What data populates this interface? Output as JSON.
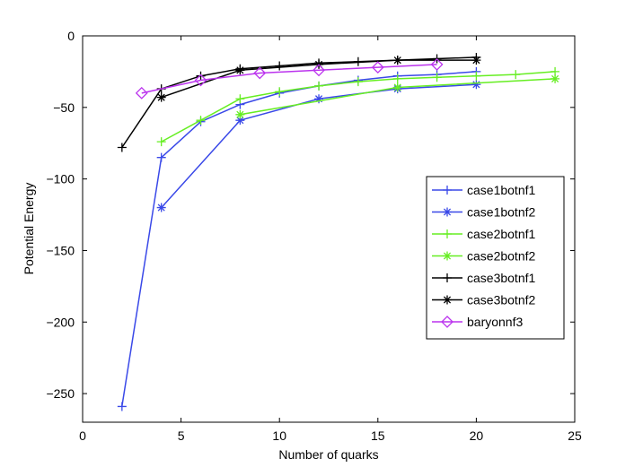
{
  "chart_data": {
    "type": "line",
    "title": "",
    "xlabel": "Number of quarks",
    "ylabel": "Potential Energy",
    "xlim": [
      0,
      25
    ],
    "ylim": [
      -270,
      0
    ],
    "xticks": [
      0,
      5,
      10,
      15,
      20,
      25
    ],
    "yticks": [
      0,
      -50,
      -100,
      -150,
      -200,
      -250
    ],
    "xtick_labels": [
      "0",
      "5",
      "10",
      "15",
      "20",
      "25"
    ],
    "ytick_labels": [
      "0",
      "−50",
      "−100",
      "−150",
      "−200",
      "−250"
    ],
    "grid": false,
    "legend_position": "right",
    "series": [
      {
        "name": "case1botnf1",
        "color": "#3a49e8",
        "marker": "plus",
        "x": [
          2,
          4,
          6,
          8,
          10,
          12,
          14,
          16,
          18,
          20
        ],
        "y": [
          -259,
          -85,
          -60,
          -48,
          -40,
          -35,
          -31,
          -28,
          -27,
          -25
        ]
      },
      {
        "name": "case1botnf2",
        "color": "#3a49e8",
        "marker": "asterisk",
        "x": [
          4,
          8,
          12,
          16,
          20
        ],
        "y": [
          -120,
          -59,
          -44,
          -37,
          -34
        ]
      },
      {
        "name": "case2botnf1",
        "color": "#66ee22",
        "marker": "plus",
        "x": [
          4,
          6,
          8,
          10,
          12,
          14,
          16,
          18,
          20,
          22,
          24
        ],
        "y": [
          -74,
          -59,
          -44,
          -39,
          -35,
          -32,
          -30,
          -29,
          -28,
          -27,
          -25
        ]
      },
      {
        "name": "case2botnf2",
        "color": "#66ee22",
        "marker": "asterisk",
        "x": [
          8,
          16,
          24
        ],
        "y": [
          -55,
          -36,
          -30
        ]
      },
      {
        "name": "case3botnf1",
        "color": "#000000",
        "marker": "plus",
        "x": [
          2,
          4,
          6,
          8,
          10,
          12,
          14,
          16,
          18,
          20
        ],
        "y": [
          -78,
          -37,
          -28,
          -23,
          -21,
          -19,
          -18,
          -17,
          -16,
          -15
        ]
      },
      {
        "name": "case3botnf2",
        "color": "#000000",
        "marker": "asterisk",
        "x": [
          4,
          8,
          12,
          16,
          20
        ],
        "y": [
          -43,
          -24,
          -20,
          -17,
          -17
        ]
      },
      {
        "name": "baryonnf3",
        "color": "#bb33ee",
        "marker": "diamond",
        "x": [
          3,
          6,
          9,
          12,
          15,
          18
        ],
        "y": [
          -40,
          -31,
          -26,
          -24,
          -22,
          -20
        ]
      }
    ]
  }
}
